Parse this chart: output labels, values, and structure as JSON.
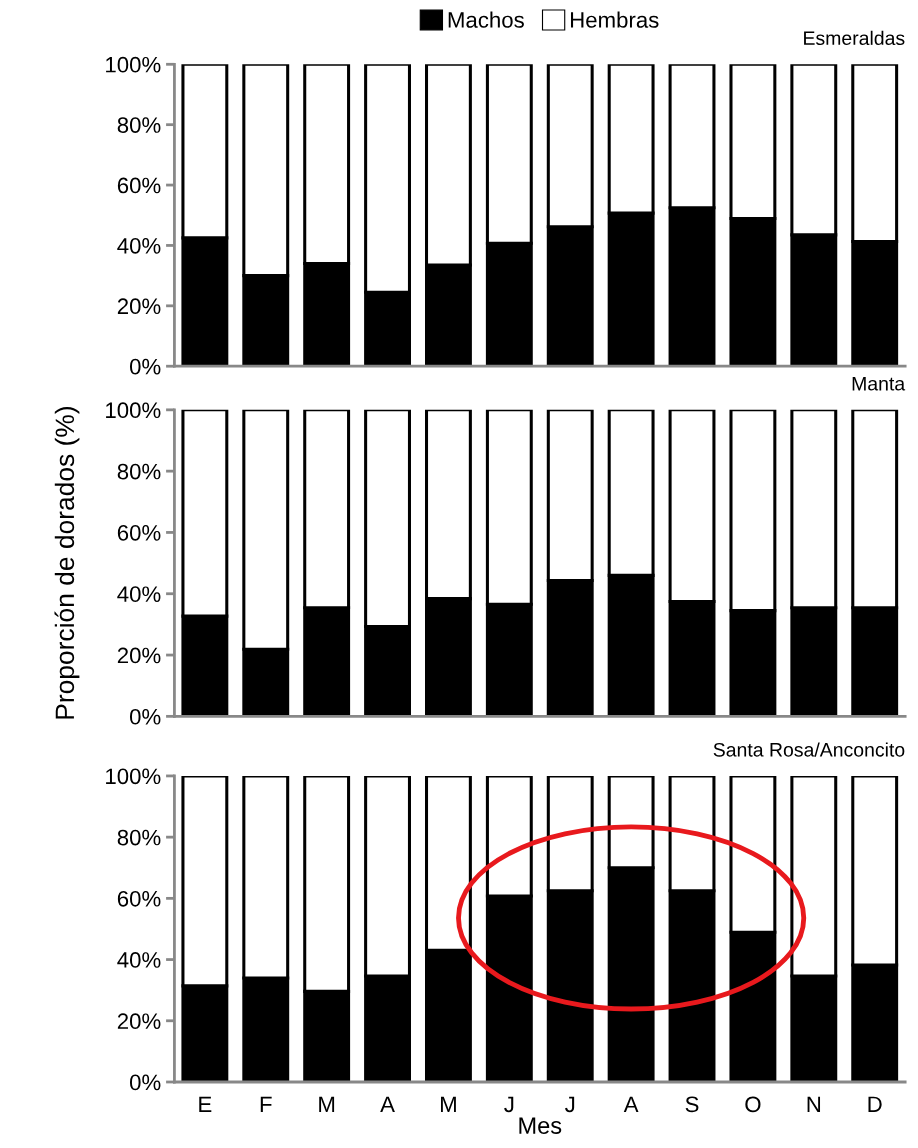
{
  "chart_data": [
    {
      "type": "bar",
      "stacked": true,
      "title": "Esmeraldas",
      "categories": [
        null,
        null,
        null,
        null,
        null,
        null,
        null,
        null,
        null,
        null,
        null,
        null
      ],
      "series": [
        {
          "name": "Machos",
          "color": "#000000",
          "values": [
            42.5,
            30,
            34,
            24.5,
            33.5,
            40.7,
            46.2,
            50.7,
            52.5,
            48.9,
            43.5,
            41.3
          ]
        },
        {
          "name": "Hembras",
          "color": "#ffffff",
          "values": [
            57.5,
            70,
            66,
            75.5,
            66.5,
            59.3,
            53.8,
            49.3,
            47.5,
            51.1,
            56.5,
            58.7
          ]
        }
      ],
      "ylim": [
        0,
        100
      ],
      "yticks": [
        {
          "value": 0,
          "label": "0%"
        },
        {
          "value": 20,
          "label": "20%"
        },
        {
          "value": 40,
          "label": "40%"
        },
        {
          "value": 60,
          "label": "60%"
        },
        {
          "value": 80,
          "label": "80%"
        },
        {
          "value": 100,
          "label": "100%"
        }
      ],
      "legend": "top",
      "tick_labels": "y"
    },
    {
      "type": "bar",
      "stacked": true,
      "title": "Manta",
      "ylabel": "Proporción de dorados (%)",
      "categories": [
        null,
        null,
        null,
        null,
        null,
        null,
        null,
        null,
        null,
        null,
        null,
        null
      ],
      "series": [
        {
          "color": "#000000",
          "values": [
            32.7,
            21.9,
            35.4,
            29.3,
            38.4,
            36.6,
            44.3,
            46,
            37.5,
            34.5,
            35.4,
            35.4
          ]
        },
        {
          "color": "#ffffff",
          "values": [
            67.3,
            78.1,
            64.6,
            70.7,
            61.6,
            63.4,
            55.7,
            54,
            62.5,
            65.5,
            64.6,
            64.6
          ]
        }
      ],
      "ylim": [
        0,
        100
      ],
      "yticks": [
        {
          "value": 0,
          "label": "0%"
        },
        {
          "value": 20,
          "label": "20%"
        },
        {
          "value": 40,
          "label": "40%"
        },
        {
          "value": 60,
          "label": "60%"
        },
        {
          "value": 80,
          "label": "80%"
        },
        {
          "value": 100,
          "label": "100%"
        }
      ],
      "tick_labels": "y"
    },
    {
      "type": "bar",
      "stacked": true,
      "title": "Santa Rosa/Anconcito",
      "xlabel": "Mes",
      "categories": [
        "E",
        "F",
        "M",
        "A",
        "M",
        "J",
        "J",
        "A",
        "S",
        "O",
        "N",
        "D"
      ],
      "series": [
        {
          "color": "#000000",
          "values": [
            31.4,
            34,
            29.6,
            34.6,
            43,
            60.8,
            62.5,
            70,
            62.5,
            48.9,
            34.6,
            38.2
          ]
        },
        {
          "color": "#ffffff",
          "values": [
            68.6,
            66,
            70.4,
            65.4,
            57,
            39.2,
            37.5,
            30,
            37.5,
            51.1,
            65.4,
            61.8
          ]
        }
      ],
      "ylim": [
        0,
        100
      ],
      "yticks": [
        {
          "value": 0,
          "label": "0%"
        },
        {
          "value": 20,
          "label": "20%"
        },
        {
          "value": 40,
          "label": "40%"
        },
        {
          "value": 60,
          "label": "60%"
        },
        {
          "value": 80,
          "label": "80%"
        },
        {
          "value": 100,
          "label": "100%"
        }
      ]
    }
  ]
}
